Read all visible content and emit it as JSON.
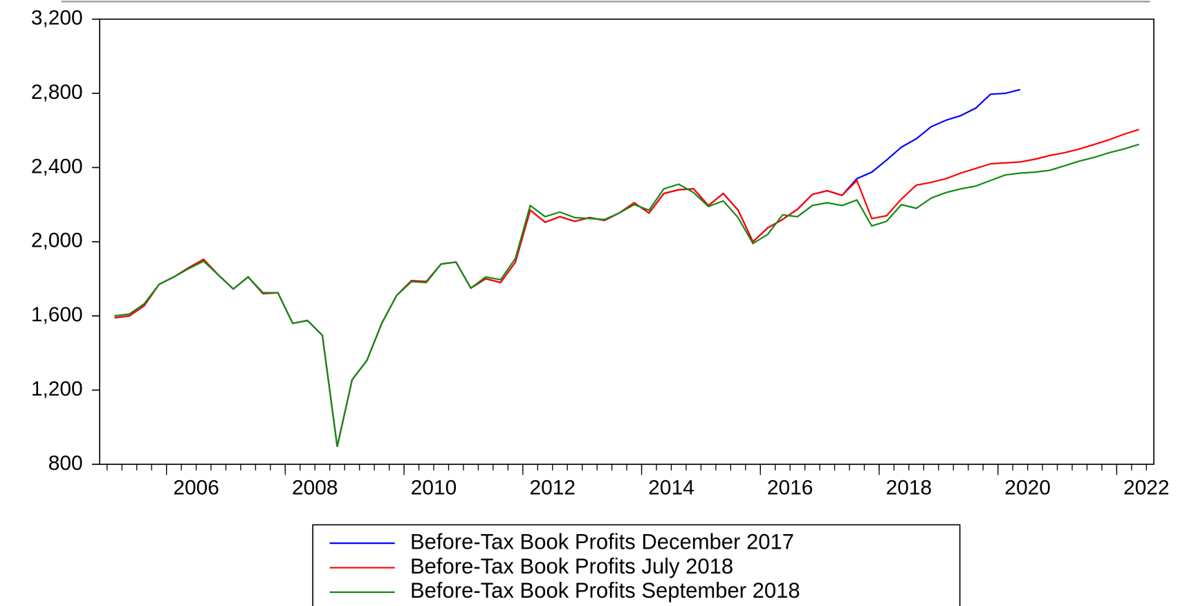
{
  "chart_data": {
    "type": "line",
    "x": [
      2005.125,
      2005.375,
      2005.625,
      2005.875,
      2006.125,
      2006.375,
      2006.625,
      2006.875,
      2007.125,
      2007.375,
      2007.625,
      2007.875,
      2008.125,
      2008.375,
      2008.625,
      2008.875,
      2009.125,
      2009.375,
      2009.625,
      2009.875,
      2010.125,
      2010.375,
      2010.625,
      2010.875,
      2011.125,
      2011.375,
      2011.625,
      2011.875,
      2012.125,
      2012.375,
      2012.625,
      2012.875,
      2013.125,
      2013.375,
      2013.625,
      2013.875,
      2014.125,
      2014.375,
      2014.625,
      2014.875,
      2015.125,
      2015.375,
      2015.625,
      2015.875,
      2016.125,
      2016.375,
      2016.625,
      2016.875,
      2017.125,
      2017.375,
      2017.625,
      2017.875,
      2018.125,
      2018.375,
      2018.625,
      2018.875,
      2019.125,
      2019.375,
      2019.625,
      2019.875,
      2020.125,
      2020.375,
      2020.625,
      2020.875,
      2021.125,
      2021.375,
      2021.625,
      2021.875,
      2022.125,
      2022.375
    ],
    "series": [
      {
        "name": "Before-Tax Book Profits December 2017",
        "color": "#0000ff",
        "values": [
          1590,
          1600,
          1655,
          1770,
          1810,
          1860,
          1905,
          1820,
          1745,
          1810,
          1720,
          1725,
          1560,
          1575,
          1495,
          895,
          1255,
          1360,
          1560,
          1710,
          1790,
          1785,
          1880,
          1890,
          1750,
          1800,
          1780,
          1890,
          2170,
          2105,
          2135,
          2110,
          2130,
          2115,
          2155,
          2210,
          2155,
          2260,
          2280,
          2285,
          2195,
          2260,
          2170,
          2000,
          2075,
          2120,
          2175,
          2255,
          2275,
          2250,
          2340,
          2375,
          2440,
          2510,
          2555,
          2620,
          2655,
          2680,
          2720,
          2795,
          2800,
          2820,
          null,
          null,
          null,
          null,
          null,
          null,
          null,
          null
        ]
      },
      {
        "name": "Before-Tax Book Profits July 2018",
        "color": "#ff0000",
        "values": [
          1590,
          1600,
          1655,
          1770,
          1810,
          1860,
          1905,
          1820,
          1745,
          1810,
          1720,
          1725,
          1560,
          1575,
          1495,
          895,
          1255,
          1360,
          1560,
          1710,
          1790,
          1785,
          1880,
          1890,
          1750,
          1800,
          1780,
          1890,
          2170,
          2105,
          2135,
          2110,
          2130,
          2115,
          2155,
          2210,
          2155,
          2260,
          2280,
          2285,
          2195,
          2260,
          2170,
          2000,
          2075,
          2120,
          2175,
          2255,
          2275,
          2250,
          2330,
          2125,
          2140,
          2230,
          2305,
          2320,
          2340,
          2370,
          2395,
          2420,
          2425,
          2430,
          2445,
          2465,
          2480,
          2500,
          2525,
          2550,
          2580,
          2605
        ]
      },
      {
        "name": "Before-Tax Book Profits September 2018",
        "color": "#138a13",
        "values": [
          1600,
          1610,
          1665,
          1770,
          1810,
          1855,
          1895,
          1820,
          1745,
          1810,
          1725,
          1725,
          1560,
          1575,
          1495,
          895,
          1255,
          1360,
          1560,
          1710,
          1785,
          1780,
          1880,
          1890,
          1750,
          1810,
          1795,
          1910,
          2195,
          2135,
          2160,
          2130,
          2125,
          2120,
          2155,
          2200,
          2170,
          2285,
          2310,
          2265,
          2190,
          2220,
          2130,
          1990,
          2040,
          2145,
          2135,
          2195,
          2210,
          2195,
          2225,
          2085,
          2110,
          2200,
          2180,
          2235,
          2265,
          2285,
          2300,
          2330,
          2360,
          2370,
          2375,
          2385,
          2410,
          2435,
          2455,
          2480,
          2500,
          2525
        ]
      }
    ],
    "xlim": [
      2004.875,
      2022.625
    ],
    "xticks": [
      2006,
      2008,
      2010,
      2012,
      2014,
      2016,
      2018,
      2020,
      2022
    ],
    "ylim": [
      800,
      3200
    ],
    "yticks": [
      800,
      {
        "value": 1200,
        "label": "1,200"
      },
      {
        "value": 1600,
        "label": "1,600"
      },
      {
        "value": 2000,
        "label": "2,000"
      },
      {
        "value": 2400,
        "label": "2,400"
      },
      {
        "value": 2800,
        "label": "2,800"
      },
      {
        "value": 3200,
        "label": "3,200"
      }
    ],
    "legend": "bottom"
  }
}
